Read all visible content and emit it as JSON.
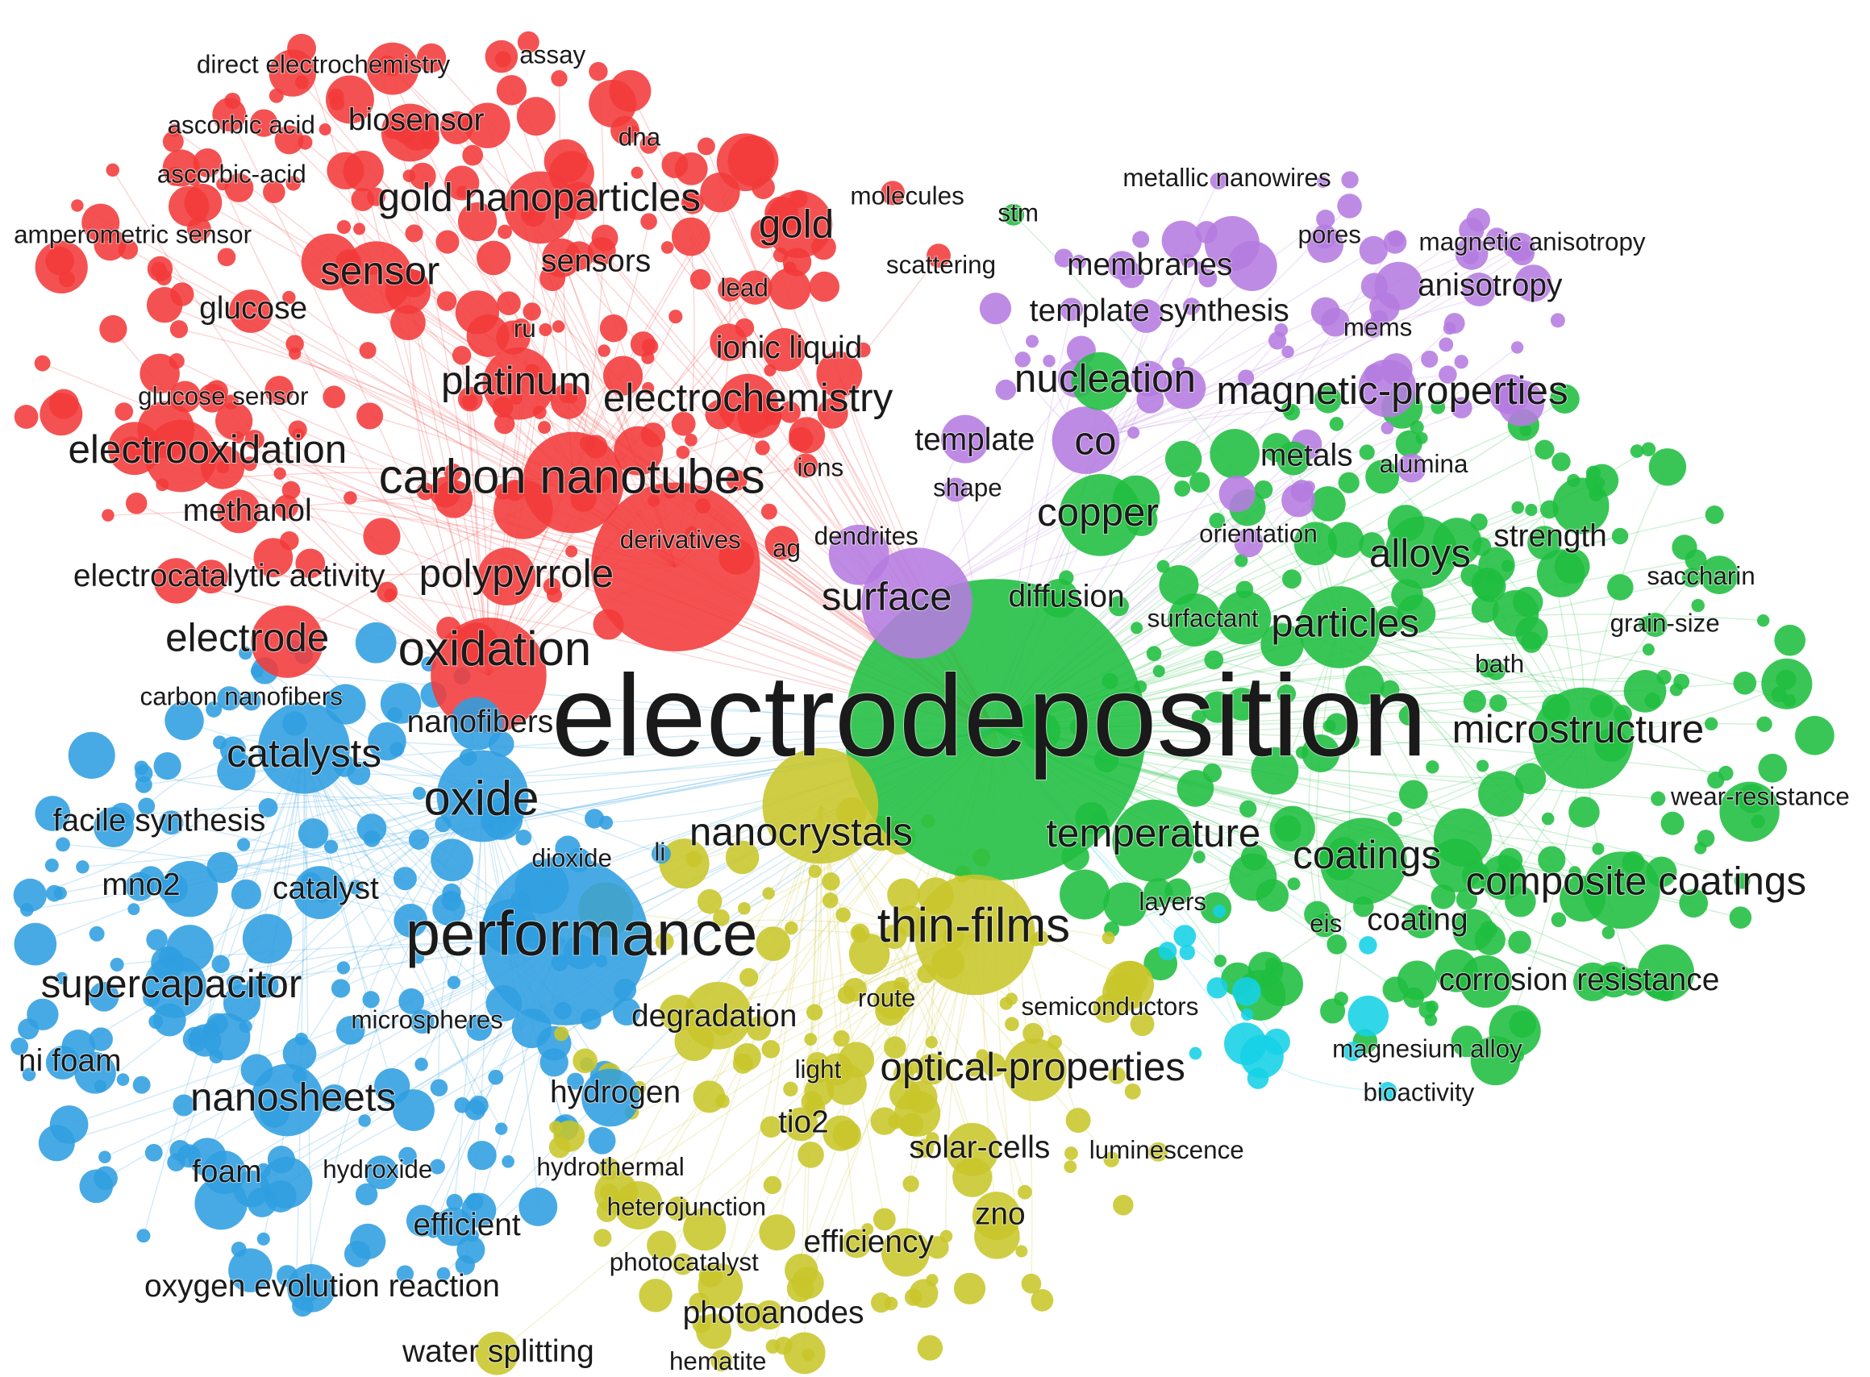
{
  "clusters": {
    "red": "#f23a3a",
    "green": "#1fbe40",
    "blue": "#2f9ee0",
    "yellow": "#c8c62a",
    "purple": "#b57be0",
    "cyan": "#14d2e6"
  },
  "labels": [
    {
      "text": "direct electrochemistry",
      "c": "red",
      "w": 1
    },
    {
      "text": "assay",
      "c": "red",
      "w": 1
    },
    {
      "text": "ascorbic acid",
      "c": "red",
      "w": 1
    },
    {
      "text": "biosensor",
      "c": "red",
      "w": 2
    },
    {
      "text": "dna",
      "c": "red",
      "w": 1
    },
    {
      "text": "ascorbic-acid",
      "c": "red",
      "w": 1
    },
    {
      "text": "gold nanoparticles",
      "c": "red",
      "w": 3
    },
    {
      "text": "molecules",
      "c": "red",
      "w": 1
    },
    {
      "text": "gold",
      "c": "red",
      "w": 3
    },
    {
      "text": "amperometric sensor",
      "c": "red",
      "w": 1
    },
    {
      "text": "sensor",
      "c": "red",
      "w": 3
    },
    {
      "text": "sensors",
      "c": "red",
      "w": 2
    },
    {
      "text": "scattering",
      "c": "red",
      "w": 1
    },
    {
      "text": "glucose",
      "c": "red",
      "w": 2
    },
    {
      "text": "lead",
      "c": "red",
      "w": 1
    },
    {
      "text": "ru",
      "c": "red",
      "w": 1
    },
    {
      "text": "ionic liquid",
      "c": "red",
      "w": 2
    },
    {
      "text": "glucose sensor",
      "c": "red",
      "w": 1
    },
    {
      "text": "platinum",
      "c": "red",
      "w": 3
    },
    {
      "text": "electrochemistry",
      "c": "red",
      "w": 3
    },
    {
      "text": "electrooxidation",
      "c": "red",
      "w": 3
    },
    {
      "text": "carbon nanotubes",
      "c": "red",
      "w": 4
    },
    {
      "text": "ions",
      "c": "red",
      "w": 1
    },
    {
      "text": "methanol",
      "c": "red",
      "w": 2
    },
    {
      "text": "derivatives",
      "c": "red",
      "w": 1
    },
    {
      "text": "ag",
      "c": "red",
      "w": 1
    },
    {
      "text": "electrocatalytic activity",
      "c": "red",
      "w": 2
    },
    {
      "text": "polypyrrole",
      "c": "red",
      "w": 3
    },
    {
      "text": "electrode",
      "c": "red",
      "w": 3
    },
    {
      "text": "oxidation",
      "c": "red",
      "w": 4
    },
    {
      "text": "stm",
      "c": "green",
      "w": 1
    },
    {
      "text": "membranes",
      "c": "purple",
      "w": 2
    },
    {
      "text": "metallic nanowires",
      "c": "purple",
      "w": 1
    },
    {
      "text": "pores",
      "c": "purple",
      "w": 1
    },
    {
      "text": "magnetic anisotropy",
      "c": "purple",
      "w": 1
    },
    {
      "text": "anisotropy",
      "c": "purple",
      "w": 2
    },
    {
      "text": "template synthesis",
      "c": "purple",
      "w": 2
    },
    {
      "text": "mems",
      "c": "purple",
      "w": 1
    },
    {
      "text": "nucleation",
      "c": "green",
      "w": 3
    },
    {
      "text": "magnetic-properties",
      "c": "purple",
      "w": 3
    },
    {
      "text": "template",
      "c": "purple",
      "w": 2
    },
    {
      "text": "co",
      "c": "purple",
      "w": 3
    },
    {
      "text": "metals",
      "c": "green",
      "w": 2
    },
    {
      "text": "alumina",
      "c": "purple",
      "w": 1
    },
    {
      "text": "shape",
      "c": "purple",
      "w": 1
    },
    {
      "text": "copper",
      "c": "green",
      "w": 3
    },
    {
      "text": "dendrites",
      "c": "purple",
      "w": 1
    },
    {
      "text": "orientation",
      "c": "purple",
      "w": 1
    },
    {
      "text": "alloys",
      "c": "green",
      "w": 3
    },
    {
      "text": "strength",
      "c": "green",
      "w": 2
    },
    {
      "text": "surface",
      "c": "purple",
      "w": 3
    },
    {
      "text": "diffusion",
      "c": "green",
      "w": 2
    },
    {
      "text": "saccharin",
      "c": "green",
      "w": 1
    },
    {
      "text": "surfactant",
      "c": "green",
      "w": 1
    },
    {
      "text": "particles",
      "c": "green",
      "w": 3
    },
    {
      "text": "grain-size",
      "c": "green",
      "w": 1
    },
    {
      "text": "bath",
      "c": "green",
      "w": 1
    },
    {
      "text": "carbon nanofibers",
      "c": "blue",
      "w": 1
    },
    {
      "text": "nanofibers",
      "c": "blue",
      "w": 2
    },
    {
      "text": "electrodeposition",
      "c": "green",
      "w": 6
    },
    {
      "text": "microstructure",
      "c": "green",
      "w": 3
    },
    {
      "text": "catalysts",
      "c": "blue",
      "w": 3
    },
    {
      "text": "oxide",
      "c": "blue",
      "w": 4
    },
    {
      "text": "wear-resistance",
      "c": "green",
      "w": 1
    },
    {
      "text": "facile synthesis",
      "c": "blue",
      "w": 2
    },
    {
      "text": "nanocrystals",
      "c": "yellow",
      "w": 3
    },
    {
      "text": "temperature",
      "c": "green",
      "w": 3
    },
    {
      "text": "dioxide",
      "c": "blue",
      "w": 1
    },
    {
      "text": "li",
      "c": "blue",
      "w": 1
    },
    {
      "text": "coatings",
      "c": "green",
      "w": 3
    },
    {
      "text": "composite coatings",
      "c": "green",
      "w": 3
    },
    {
      "text": "mno2",
      "c": "blue",
      "w": 2
    },
    {
      "text": "catalyst",
      "c": "blue",
      "w": 2
    },
    {
      "text": "layers",
      "c": "green",
      "w": 1
    },
    {
      "text": "eis",
      "c": "green",
      "w": 1
    },
    {
      "text": "coating",
      "c": "green",
      "w": 2
    },
    {
      "text": "performance",
      "c": "blue",
      "w": 5
    },
    {
      "text": "thin-films",
      "c": "yellow",
      "w": 4
    },
    {
      "text": "supercapacitor",
      "c": "blue",
      "w": 3
    },
    {
      "text": "route",
      "c": "yellow",
      "w": 1
    },
    {
      "text": "corrosion resistance",
      "c": "green",
      "w": 2
    },
    {
      "text": "semiconductors",
      "c": "yellow",
      "w": 1
    },
    {
      "text": "microspheres",
      "c": "blue",
      "w": 1
    },
    {
      "text": "degradation",
      "c": "yellow",
      "w": 2
    },
    {
      "text": "magnesium alloy",
      "c": "cyan",
      "w": 1
    },
    {
      "text": "ni foam",
      "c": "blue",
      "w": 2
    },
    {
      "text": "light",
      "c": "yellow",
      "w": 1
    },
    {
      "text": "optical-properties",
      "c": "yellow",
      "w": 3
    },
    {
      "text": "bioactivity",
      "c": "cyan",
      "w": 1
    },
    {
      "text": "nanosheets",
      "c": "blue",
      "w": 3
    },
    {
      "text": "hydrogen",
      "c": "blue",
      "w": 2
    },
    {
      "text": "tio2",
      "c": "yellow",
      "w": 2
    },
    {
      "text": "solar-cells",
      "c": "yellow",
      "w": 2
    },
    {
      "text": "luminescence",
      "c": "yellow",
      "w": 1
    },
    {
      "text": "foam",
      "c": "blue",
      "w": 2
    },
    {
      "text": "hydroxide",
      "c": "blue",
      "w": 1
    },
    {
      "text": "hydrothermal",
      "c": "yellow",
      "w": 1
    },
    {
      "text": "heterojunction",
      "c": "yellow",
      "w": 1
    },
    {
      "text": "zno",
      "c": "yellow",
      "w": 2
    },
    {
      "text": "efficient",
      "c": "blue",
      "w": 2
    },
    {
      "text": "efficiency",
      "c": "yellow",
      "w": 2
    },
    {
      "text": "photocatalyst",
      "c": "yellow",
      "w": 1
    },
    {
      "text": "oxygen evolution reaction",
      "c": "blue",
      "w": 2
    },
    {
      "text": "photoanodes",
      "c": "yellow",
      "w": 2
    },
    {
      "text": "water splitting",
      "c": "yellow",
      "w": 2
    },
    {
      "text": "hematite",
      "c": "yellow",
      "w": 1
    }
  ]
}
